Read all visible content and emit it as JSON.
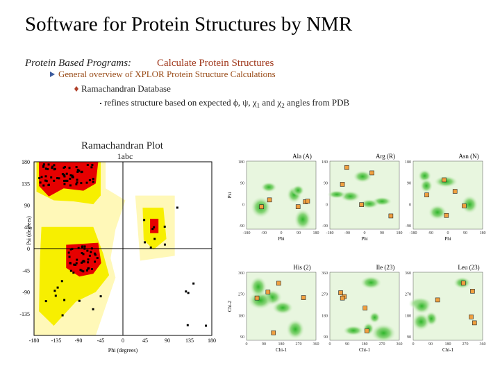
{
  "title": "Software for Protein Structures by NMR",
  "section": {
    "label": "Protein Based Programs:",
    "topic": "Calculate Protein Structures"
  },
  "bullets": [
    "General overview of XPLOR Protein Structure Calculations",
    "Ramachandran Database"
  ],
  "sub_bullet": {
    "parts": [
      "refines structure based on expected ϕ, ψ, χ",
      "1",
      " and χ",
      "2",
      " angles from PDB"
    ]
  },
  "ramachandran": {
    "title": "Ramachandran Plot",
    "protein": "1abc",
    "x_label": "Phi (degrees)",
    "y_label": "Psi (degrees)",
    "x_ticks": [
      "-180",
      "-135",
      "-90",
      "-45",
      "0",
      "45",
      "90",
      "135",
      "180"
    ],
    "y_ticks": [
      "180",
      "135",
      "90",
      "45",
      "0",
      "-45",
      "-90",
      "-135"
    ]
  },
  "backbone_panels": {
    "x_label": "Phi",
    "y_label": "Psi",
    "x_ticks": [
      "-180",
      "-90",
      "0",
      "90",
      "180"
    ],
    "y_ticks": [
      "180",
      "90",
      "0",
      "-90"
    ],
    "titles": [
      "Ala (A)",
      "Arg (R)",
      "Asn (N)"
    ]
  },
  "sidechain_panels": {
    "x_label": "Chi-1",
    "y_label": "Chi-2",
    "x_ticks": [
      "0",
      "90",
      "180",
      "270",
      "360"
    ],
    "y_ticks": [
      "360",
      "270",
      "180",
      "90"
    ],
    "titles": [
      "His (2)",
      "Ile (23)",
      "Leu (23)"
    ]
  }
}
